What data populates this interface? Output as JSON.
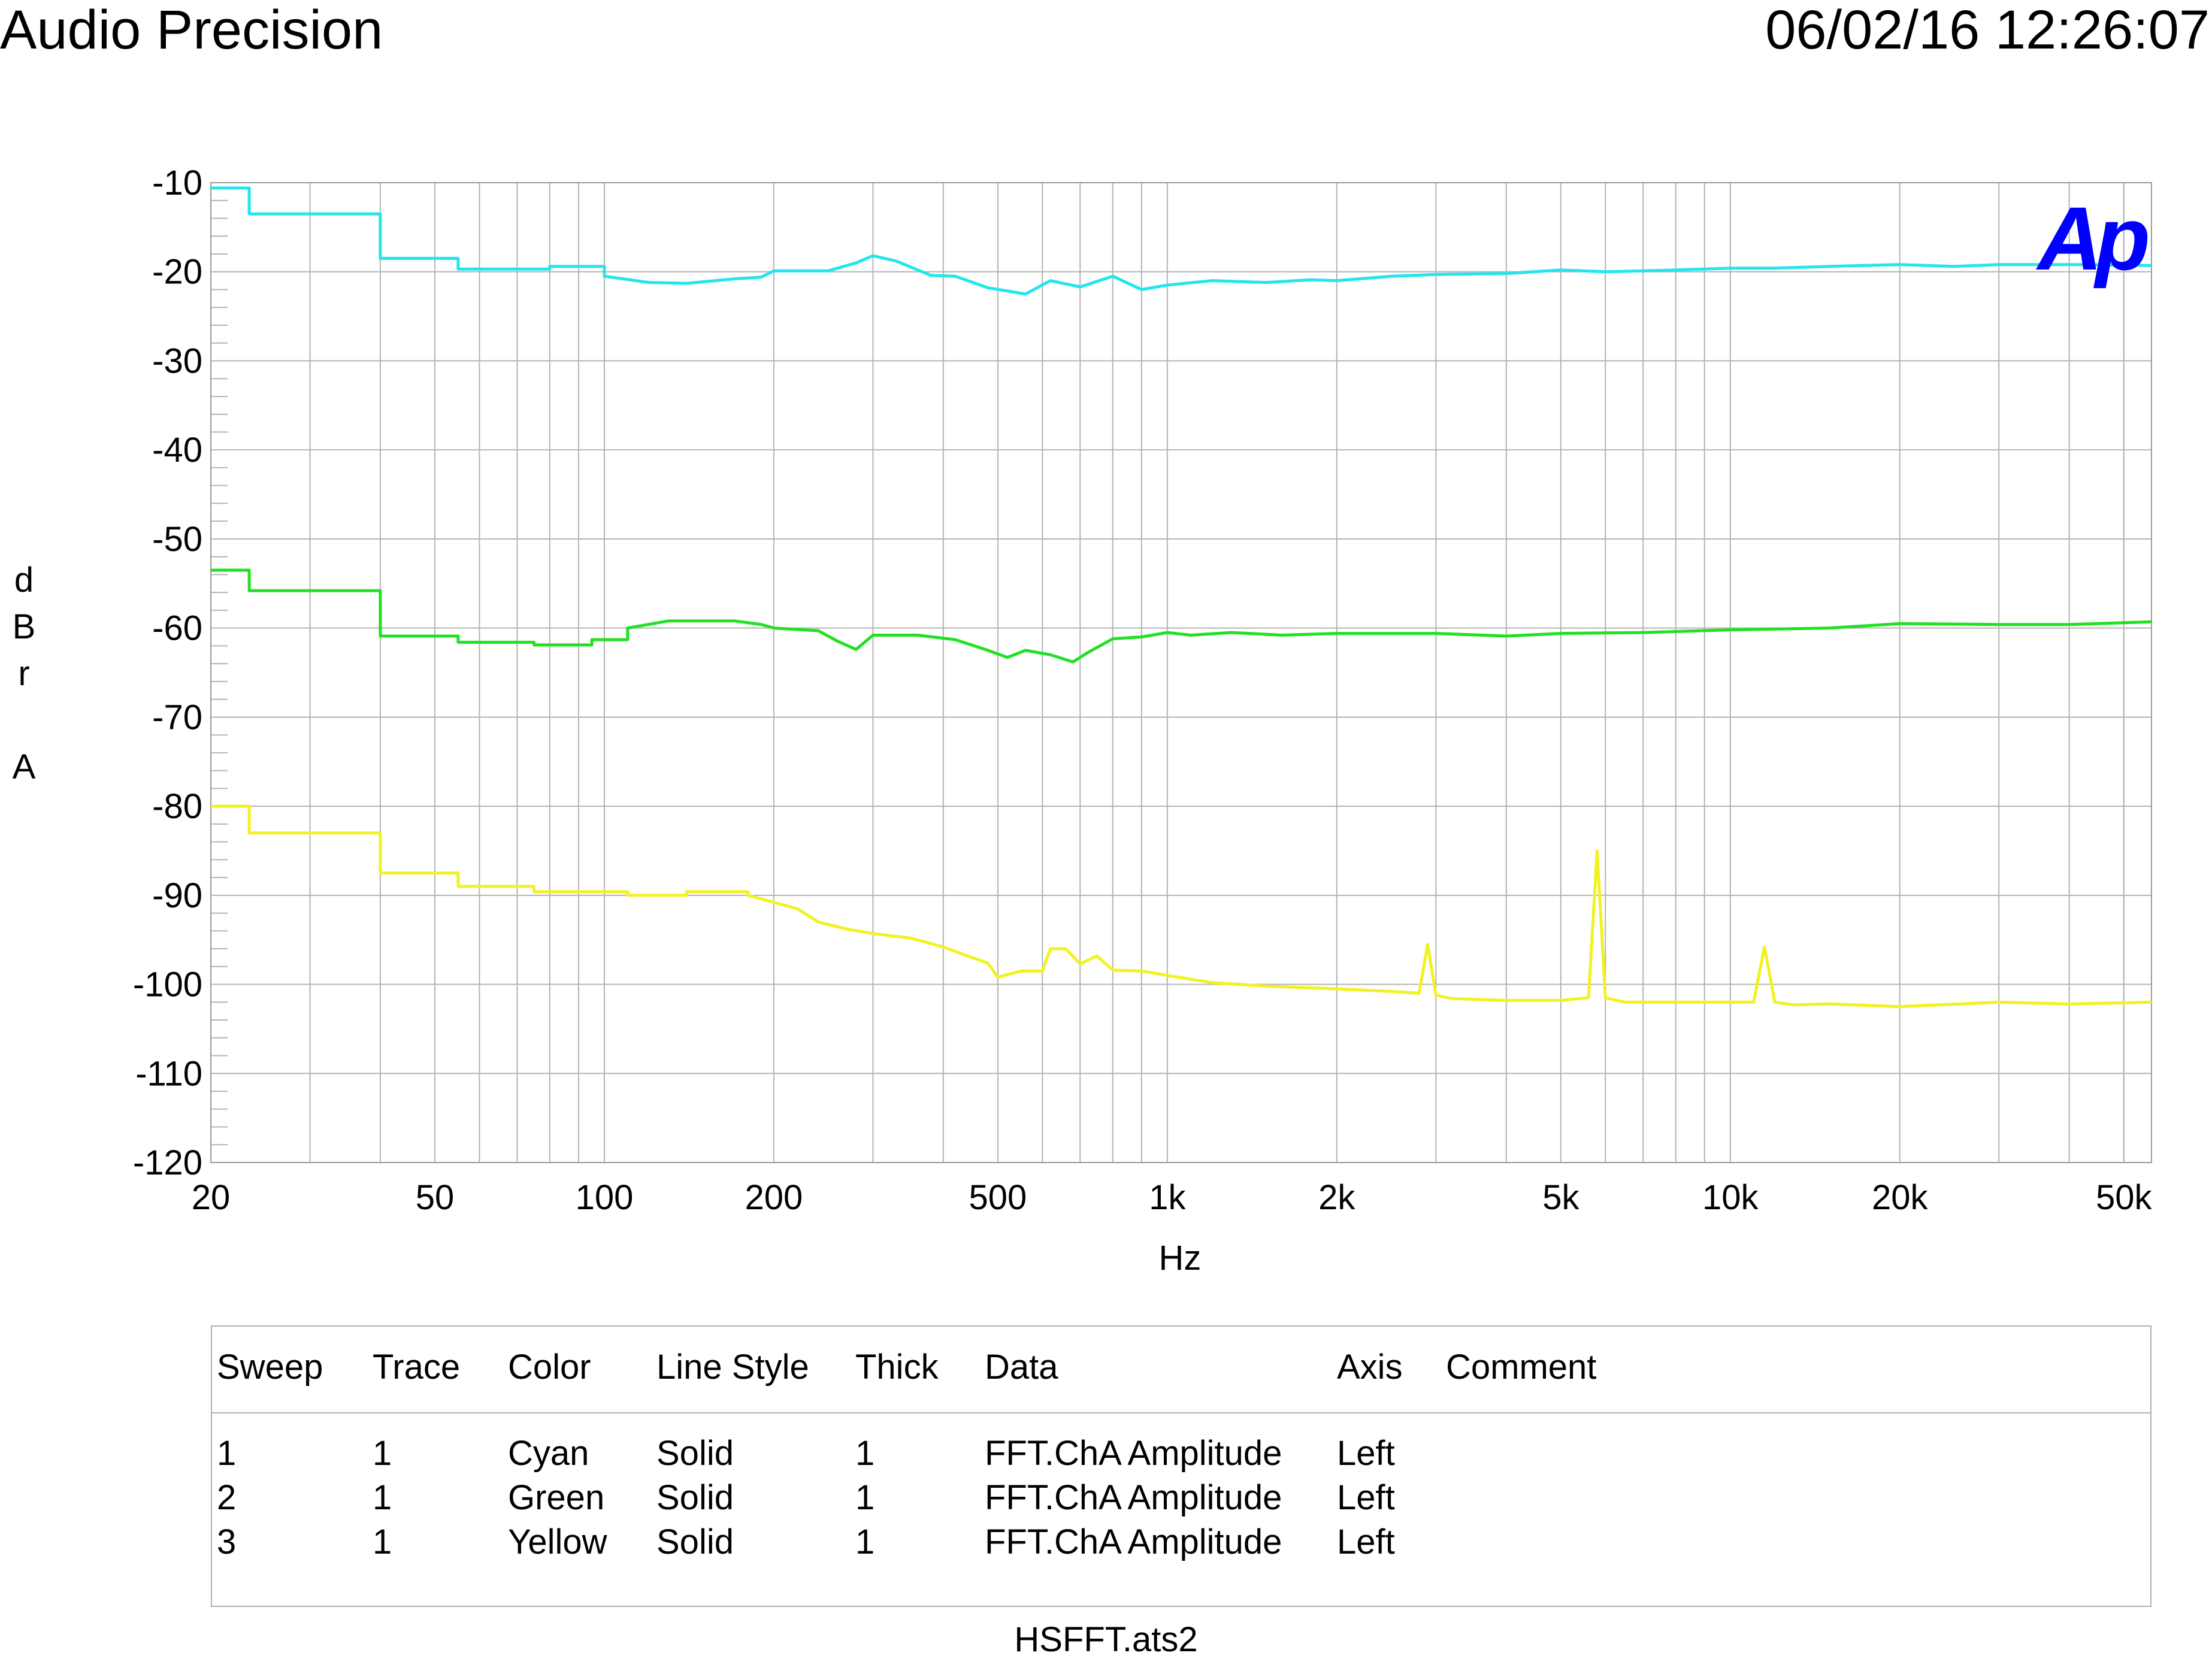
{
  "header": {
    "title": "Audio Precision",
    "timestamp": "06/02/16 12:26:07"
  },
  "logo": {
    "text": "Ap",
    "color": "#0000ff"
  },
  "chart_data": {
    "type": "line",
    "xlabel": "Hz",
    "ylabel": "dBr A",
    "x_scale": "log",
    "xlim": [
      20,
      56000
    ],
    "ylim": [
      -120,
      -10
    ],
    "grid": true,
    "x_ticks": [
      20,
      50,
      100,
      200,
      500,
      1000,
      2000,
      5000,
      10000,
      20000,
      50000
    ],
    "x_tick_labels": [
      "20",
      "50",
      "100",
      "200",
      "500",
      "1k",
      "2k",
      "5k",
      "10k",
      "20k",
      "50k"
    ],
    "y_ticks": [
      -10,
      -20,
      -30,
      -40,
      -50,
      -60,
      -70,
      -80,
      -90,
      -100,
      -110,
      -120
    ],
    "y_tick_labels": [
      "-10",
      "-20",
      "-30",
      "-40",
      "-50",
      "-60",
      "-70",
      "-80",
      "-90",
      "-100",
      "-110",
      "-120"
    ],
    "series": [
      {
        "color": "#22e5ee",
        "x": [
          20,
          23.4,
          23.4,
          40,
          40,
          55,
          55,
          80,
          80,
          100,
          100,
          120,
          140,
          170,
          190,
          200,
          250,
          280,
          300,
          330,
          380,
          420,
          480,
          560,
          620,
          700,
          800,
          900,
          1000,
          1200,
          1500,
          1800,
          2000,
          2500,
          3000,
          4000,
          5000,
          6000,
          8000,
          10000,
          12000,
          15000,
          20000,
          25000,
          30000,
          40000,
          56000
        ],
        "y": [
          -10.6,
          -10.6,
          -13.5,
          -13.5,
          -18.5,
          -18.5,
          -19.7,
          -19.7,
          -19.4,
          -19.4,
          -20.5,
          -21.2,
          -21.3,
          -20.8,
          -20.6,
          -19.9,
          -19.9,
          -19.0,
          -18.2,
          -18.8,
          -20.4,
          -20.5,
          -21.8,
          -22.5,
          -21.0,
          -21.7,
          -20.5,
          -22.0,
          -21.5,
          -21.0,
          -21.2,
          -20.9,
          -21.0,
          -20.5,
          -20.3,
          -20.2,
          -19.8,
          -20.0,
          -19.8,
          -19.6,
          -19.6,
          -19.4,
          -19.2,
          -19.4,
          -19.2,
          -19.2,
          -19.3
        ]
      },
      {
        "color": "#22e022",
        "x": [
          20,
          23.4,
          23.4,
          40,
          40,
          55,
          55,
          75,
          75,
          95,
          95,
          110,
          110,
          130,
          170,
          190,
          200,
          240,
          260,
          280,
          300,
          360,
          420,
          480,
          520,
          560,
          620,
          680,
          720,
          800,
          900,
          1000,
          1100,
          1300,
          1600,
          2000,
          3000,
          4000,
          5000,
          7000,
          10000,
          15000,
          20000,
          30000,
          40000,
          56000
        ],
        "y": [
          -53.5,
          -53.5,
          -55.8,
          -55.8,
          -60.9,
          -60.9,
          -61.6,
          -61.6,
          -61.9,
          -61.9,
          -61.3,
          -61.3,
          -60.0,
          -59.2,
          -59.2,
          -59.6,
          -60.0,
          -60.3,
          -61.5,
          -62.4,
          -60.8,
          -60.8,
          -61.3,
          -62.5,
          -63.3,
          -62.5,
          -63.0,
          -63.8,
          -62.8,
          -61.2,
          -61.0,
          -60.5,
          -60.8,
          -60.5,
          -60.8,
          -60.6,
          -60.6,
          -60.9,
          -60.6,
          -60.5,
          -60.2,
          -60.0,
          -59.5,
          -59.6,
          -59.6,
          -59.3
        ]
      },
      {
        "color": "#f2f222",
        "x": [
          20,
          23.4,
          23.4,
          40,
          40,
          55,
          55,
          75,
          75,
          110,
          110,
          140,
          140,
          180,
          180,
          220,
          240,
          270,
          300,
          350,
          400,
          450,
          480,
          500,
          550,
          600,
          620,
          660,
          700,
          750,
          800,
          900,
          1000,
          1200,
          1500,
          2000,
          2500,
          2800,
          2900,
          3000,
          3200,
          4000,
          5000,
          5600,
          5800,
          6000,
          6500,
          8000,
          10000,
          11000,
          11500,
          12000,
          13000,
          15000,
          20000,
          30000,
          40000,
          56000
        ],
        "y": [
          -80.0,
          -80.0,
          -83.0,
          -83.0,
          -87.5,
          -87.5,
          -89.0,
          -89.0,
          -89.6,
          -89.6,
          -90.0,
          -90.0,
          -89.6,
          -89.6,
          -90.0,
          -91.5,
          -93.0,
          -93.8,
          -94.3,
          -94.8,
          -95.8,
          -97.0,
          -97.6,
          -99.2,
          -98.5,
          -98.5,
          -96.0,
          -96.0,
          -97.7,
          -96.8,
          -98.4,
          -98.5,
          -99.0,
          -99.8,
          -100.2,
          -100.5,
          -100.8,
          -101.0,
          -95.5,
          -101.2,
          -101.6,
          -101.8,
          -101.8,
          -101.5,
          -85.0,
          -101.5,
          -102.0,
          -102.0,
          -102.0,
          -102.0,
          -95.8,
          -102.0,
          -102.3,
          -102.2,
          -102.5,
          -102.0,
          -102.2,
          -102.0
        ]
      }
    ]
  },
  "legend": {
    "headers": [
      "Sweep",
      "Trace",
      "Color",
      "Line Style",
      "Thick",
      "Data",
      "Axis",
      "Comment"
    ],
    "rows": [
      [
        "1",
        "1",
        "Cyan",
        "Solid",
        "1",
        "FFT.ChA Amplitude",
        "Left",
        ""
      ],
      [
        "2",
        "1",
        "Green",
        "Solid",
        "1",
        "FFT.ChA Amplitude",
        "Left",
        ""
      ],
      [
        "3",
        "1",
        "Yellow",
        "Solid",
        "1",
        "FFT.ChA Amplitude",
        "Left",
        ""
      ]
    ]
  },
  "footer": {
    "filename": "HSFFT.ats2"
  }
}
